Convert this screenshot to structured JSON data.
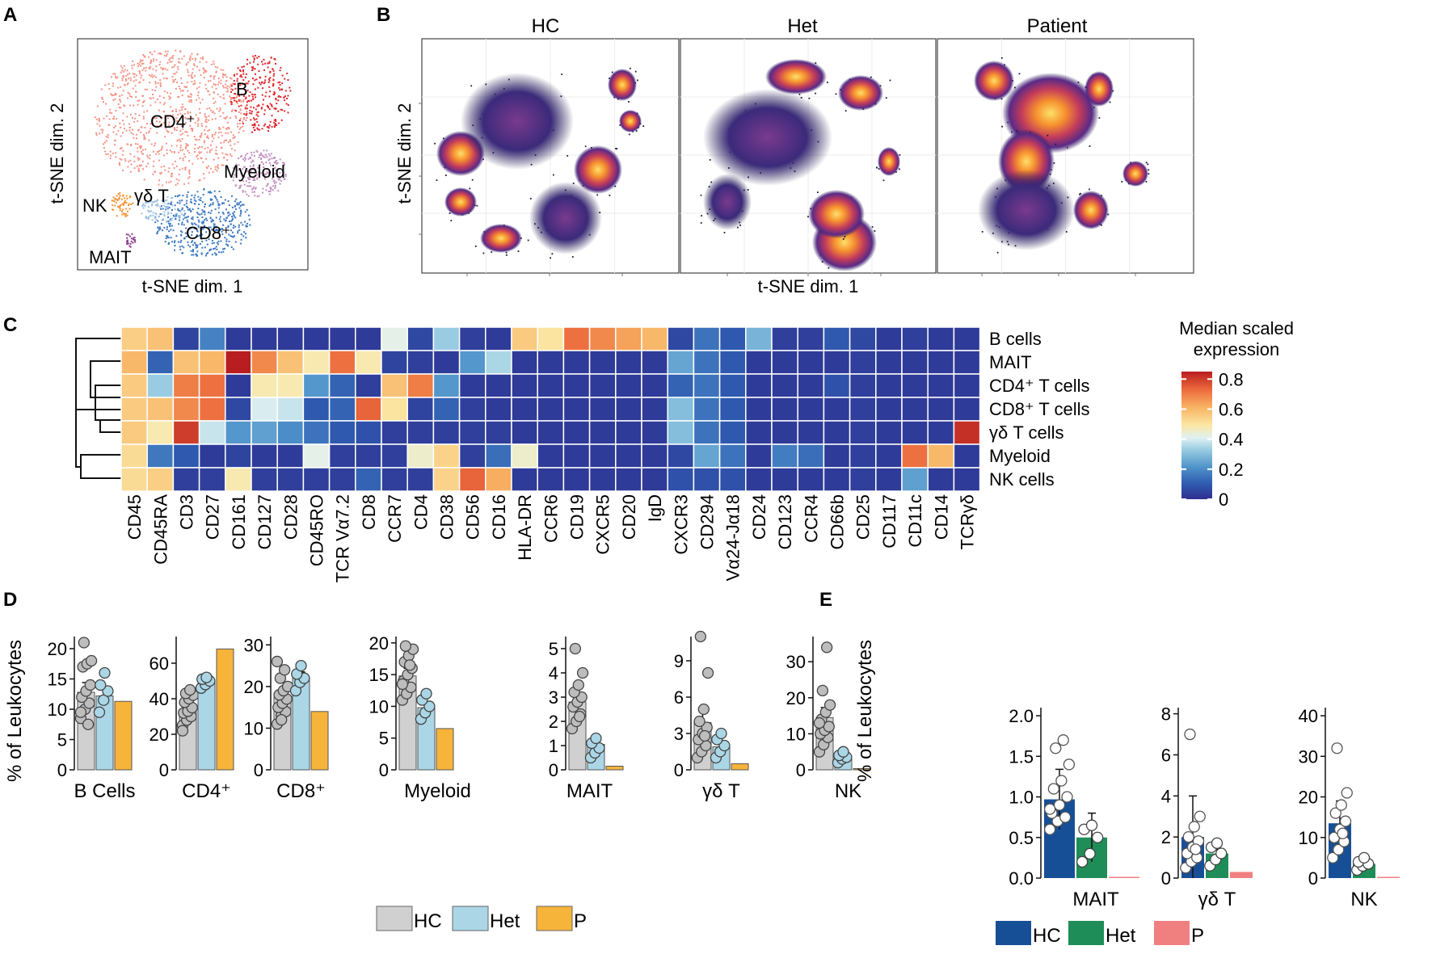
{
  "colors": {
    "cd4": "#f49486",
    "b": "#e0262b",
    "myeloid": "#c391c0",
    "cd8": "#3b78c2",
    "gd": "#9dc3e6",
    "nk": "#f39533",
    "mait": "#8a3f8e",
    "hc_gray": "#d0d0d0",
    "het_blue": "#abd6e6",
    "p_orange": "#f7b43a",
    "hc_navy": "#174f96",
    "het_green": "#1f8d58",
    "p_pink": "#f08080"
  },
  "panels": {
    "a": "A",
    "b": "B",
    "c": "C",
    "d": "D",
    "e": "E"
  },
  "panel_a": {
    "xlabel": "t-SNE dim. 1",
    "ylabel": "t-SNE dim. 2",
    "clusters": [
      {
        "id": "cd4",
        "label": "CD4⁺"
      },
      {
        "id": "b",
        "label": "B"
      },
      {
        "id": "myeloid",
        "label": "Myeloid"
      },
      {
        "id": "cd8",
        "label": "CD8⁺"
      },
      {
        "id": "gd",
        "label": "γδ T"
      },
      {
        "id": "nk",
        "label": "NK"
      },
      {
        "id": "mait",
        "label": "MAIT"
      }
    ]
  },
  "panel_b": {
    "xlabel": "t-SNE dim. 1",
    "ylabel": "t-SNE dim. 2",
    "facets": [
      "HC",
      "Het",
      "Patient"
    ]
  },
  "chart_data": [
    {
      "type": "heatmap",
      "title": "Median scaled expression",
      "legend_title": [
        "Median scaled",
        "expression"
      ],
      "legend_ticks": [
        0.8,
        0.6,
        0.4,
        0.2,
        0
      ],
      "range": [
        0,
        0.85
      ],
      "row_labels": [
        "B cells",
        "MAIT",
        "CD4⁺ T cells",
        "CD8⁺ T cells",
        "γδ T cells",
        "Myeloid",
        "NK cells"
      ],
      "col_labels": [
        "CD45",
        "CD45RA",
        "CD3",
        "CD27",
        "CD161",
        "CD127",
        "CD28",
        "CD45RO",
        "TCR Vα7.2",
        "CD8",
        "CCR7",
        "CD4",
        "CD38",
        "CD56",
        "CD16",
        "HLA-DR",
        "CCR6",
        "CD19",
        "CXCR5",
        "CD20",
        "IgD",
        "CXCR3",
        "CD294",
        "Vα24-Jα18",
        "CD24",
        "CD123",
        "CCR4",
        "CD66b",
        "CD25",
        "CD117",
        "CD11c",
        "CD14",
        "TCRγδ"
      ],
      "values": [
        [
          0.55,
          0.58,
          0.05,
          0.18,
          0.03,
          0.03,
          0.03,
          0.03,
          0.03,
          0.03,
          0.42,
          0.06,
          0.33,
          0.04,
          0.03,
          0.56,
          0.5,
          0.72,
          0.68,
          0.64,
          0.6,
          0.06,
          0.15,
          0.1,
          0.28,
          0.04,
          0.04,
          0.1,
          0.06,
          0.03,
          0.04,
          0.03,
          0.03
        ],
        [
          0.6,
          0.12,
          0.58,
          0.6,
          0.85,
          0.68,
          0.58,
          0.48,
          0.72,
          0.48,
          0.05,
          0.04,
          0.03,
          0.22,
          0.35,
          0.03,
          0.03,
          0.03,
          0.03,
          0.03,
          0.03,
          0.25,
          0.15,
          0.1,
          0.03,
          0.03,
          0.03,
          0.03,
          0.04,
          0.03,
          0.03,
          0.03,
          0.03
        ],
        [
          0.56,
          0.33,
          0.7,
          0.72,
          0.03,
          0.48,
          0.48,
          0.22,
          0.12,
          0.04,
          0.58,
          0.7,
          0.22,
          0.03,
          0.03,
          0.03,
          0.03,
          0.03,
          0.03,
          0.03,
          0.03,
          0.12,
          0.15,
          0.1,
          0.03,
          0.03,
          0.03,
          0.08,
          0.04,
          0.03,
          0.03,
          0.03,
          0.03
        ],
        [
          0.56,
          0.58,
          0.68,
          0.72,
          0.06,
          0.4,
          0.38,
          0.1,
          0.12,
          0.74,
          0.5,
          0.05,
          0.12,
          0.04,
          0.03,
          0.03,
          0.03,
          0.03,
          0.03,
          0.03,
          0.03,
          0.3,
          0.15,
          0.1,
          0.03,
          0.03,
          0.03,
          0.03,
          0.04,
          0.03,
          0.03,
          0.03,
          0.03
        ],
        [
          0.56,
          0.48,
          0.8,
          0.38,
          0.22,
          0.24,
          0.2,
          0.15,
          0.1,
          0.08,
          0.04,
          0.04,
          0.04,
          0.04,
          0.04,
          0.03,
          0.03,
          0.03,
          0.03,
          0.03,
          0.03,
          0.3,
          0.15,
          0.1,
          0.03,
          0.03,
          0.03,
          0.03,
          0.04,
          0.03,
          0.03,
          0.03,
          0.82
        ],
        [
          0.52,
          0.16,
          0.1,
          0.03,
          0.05,
          0.03,
          0.03,
          0.42,
          0.04,
          0.04,
          0.04,
          0.45,
          0.54,
          0.04,
          0.14,
          0.45,
          0.03,
          0.03,
          0.03,
          0.03,
          0.03,
          0.06,
          0.25,
          0.15,
          0.03,
          0.17,
          0.14,
          0.03,
          0.04,
          0.03,
          0.72,
          0.6,
          0.03
        ],
        [
          0.52,
          0.55,
          0.04,
          0.04,
          0.48,
          0.04,
          0.04,
          0.04,
          0.04,
          0.12,
          0.04,
          0.04,
          0.54,
          0.74,
          0.62,
          0.03,
          0.03,
          0.03,
          0.03,
          0.03,
          0.03,
          0.08,
          0.08,
          0.08,
          0.03,
          0.03,
          0.03,
          0.03,
          0.04,
          0.03,
          0.24,
          0.03,
          0.03
        ]
      ]
    },
    {
      "type": "bar",
      "panel": "D",
      "ylabel": "% of Leukocytes",
      "legend": [
        "HC",
        "Het",
        "P"
      ],
      "subplots": [
        {
          "title": "B Cells",
          "ylim": [
            0,
            22
          ],
          "yticks": [
            0,
            5,
            10,
            15,
            20
          ],
          "HC": 12.8,
          "HC_err": 1.6,
          "Het": 12.2,
          "Het_err": 1.2,
          "P": 11.3,
          "HC_points": [
            8.5,
            10.0,
            11.0,
            12.0,
            13.0,
            14.0,
            17.0,
            17.5,
            18.0,
            21.0,
            7.5,
            9.5
          ],
          "Het_points": [
            9.5,
            11.5,
            13.0,
            14.0,
            16.0
          ]
        },
        {
          "title": "CD4⁺",
          "ylim": [
            0,
            75
          ],
          "yticks": [
            0,
            20,
            40,
            60
          ],
          "HC": 34.0,
          "HC_err": 3.5,
          "Het": 49.0,
          "Het_err": 2.0,
          "P": 68.0,
          "HC_points": [
            25,
            28,
            30,
            32,
            33,
            35,
            38,
            40,
            42,
            43,
            45,
            22
          ],
          "Het_points": [
            46,
            48,
            50,
            51,
            52
          ]
        },
        {
          "title": "CD8⁺",
          "ylim": [
            0,
            32
          ],
          "yticks": [
            0,
            10,
            20,
            30
          ],
          "HC": 17.5,
          "HC_err": 2.0,
          "Het": 22.0,
          "Het_err": 1.5,
          "P": 14.0,
          "HC_points": [
            11,
            13,
            14,
            15,
            16,
            17,
            18,
            19,
            20,
            22,
            24,
            26,
            12
          ],
          "Het_points": [
            19,
            21,
            22,
            23,
            25
          ]
        },
        {
          "title": "Myeloid",
          "ylim": [
            0,
            21
          ],
          "yticks": [
            0,
            5,
            10,
            15,
            20
          ],
          "HC": 14.8,
          "HC_err": 1.2,
          "Het": 9.8,
          "Het_err": 0.8,
          "P": 6.5,
          "HC_points": [
            11,
            12,
            13,
            14,
            15,
            16,
            17,
            18,
            19,
            19.5,
            16.5,
            13.5
          ],
          "Het_points": [
            8,
            9,
            10,
            11,
            12
          ]
        },
        {
          "title": "MAIT",
          "ylim": [
            0,
            5.5
          ],
          "yticks": [
            0,
            1,
            2,
            3,
            4,
            5
          ],
          "HC": 2.8,
          "HC_err": 0.3,
          "Het": 1.05,
          "Het_err": 0.2,
          "P": 0.15,
          "HC_points": [
            1.7,
            2.0,
            2.3,
            2.6,
            2.8,
            3.0,
            3.2,
            3.5,
            4.0,
            5.0,
            2.2
          ],
          "Het_points": [
            0.5,
            0.7,
            0.9,
            1.1,
            1.3
          ]
        },
        {
          "title": "γδ T",
          "ylim": [
            0,
            11
          ],
          "yticks": [
            0,
            3,
            6,
            9
          ],
          "HC": 3.9,
          "HC_err": 0.9,
          "Het": 1.9,
          "Het_err": 0.4,
          "P": 0.5,
          "HC_points": [
            1,
            1.5,
            2,
            2.5,
            3,
            3.5,
            4,
            5,
            8,
            11,
            2.8
          ],
          "Het_points": [
            1.0,
            1.5,
            2.0,
            2.5,
            3.0
          ]
        },
        {
          "title": "NK",
          "ylim": [
            0,
            37
          ],
          "yticks": [
            0,
            10,
            20,
            30
          ],
          "HC": 14.5,
          "HC_err": 2.8,
          "Het": 3.6,
          "Het_err": 0.8,
          "P": 0.3,
          "HC_points": [
            5,
            7,
            9,
            10,
            11,
            12,
            14,
            16,
            18,
            22,
            34,
            13
          ],
          "Het_points": [
            2,
            3,
            3.5,
            4,
            5
          ]
        }
      ]
    },
    {
      "type": "bar",
      "panel": "E",
      "ylabel": "% of Leukocytes",
      "legend": [
        "HC",
        "Het",
        "P"
      ],
      "subplots": [
        {
          "title": "MAIT",
          "ylim": [
            0,
            2.1
          ],
          "yticks": [
            0.0,
            0.5,
            1.0,
            1.5,
            2.0
          ],
          "yticklabels": [
            "0.0",
            "0.5",
            "1.0",
            "1.5",
            "2.0"
          ],
          "HC": 0.97,
          "HC_err": 0.37,
          "Het": 0.5,
          "Het_err": 0.3,
          "P": 0.0,
          "HC_points": [
            0.6,
            0.7,
            0.75,
            0.8,
            0.9,
            1.0,
            1.1,
            1.2,
            1.4,
            1.6,
            1.7,
            0.85
          ],
          "Het_points": [
            0.2,
            0.3,
            0.5,
            0.6,
            0.65
          ]
        },
        {
          "title": "γδ T",
          "ylim": [
            0,
            8.3
          ],
          "yticks": [
            0,
            2,
            4,
            6,
            8
          ],
          "HC": 2.0,
          "HC_err": 2.0,
          "Het": 1.2,
          "Het_err": 0.5,
          "P": 0.3,
          "HC_points": [
            0.5,
            0.8,
            1.0,
            1.2,
            1.5,
            1.8,
            2.0,
            2.5,
            3.0,
            7.0,
            1.4
          ],
          "Het_points": [
            0.6,
            0.9,
            1.2,
            1.5,
            1.7
          ]
        },
        {
          "title": "NK",
          "ylim": [
            0,
            42
          ],
          "yticks": [
            0,
            10,
            20,
            30,
            40
          ],
          "HC": 13.5,
          "HC_err": 5.5,
          "Het": 3.5,
          "Het_err": 1.0,
          "P": 0.3,
          "HC_points": [
            5,
            7,
            9,
            10,
            12,
            14,
            16,
            18,
            21,
            32,
            11
          ],
          "Het_points": [
            2,
            3,
            3.5,
            4,
            5
          ]
        }
      ]
    }
  ]
}
